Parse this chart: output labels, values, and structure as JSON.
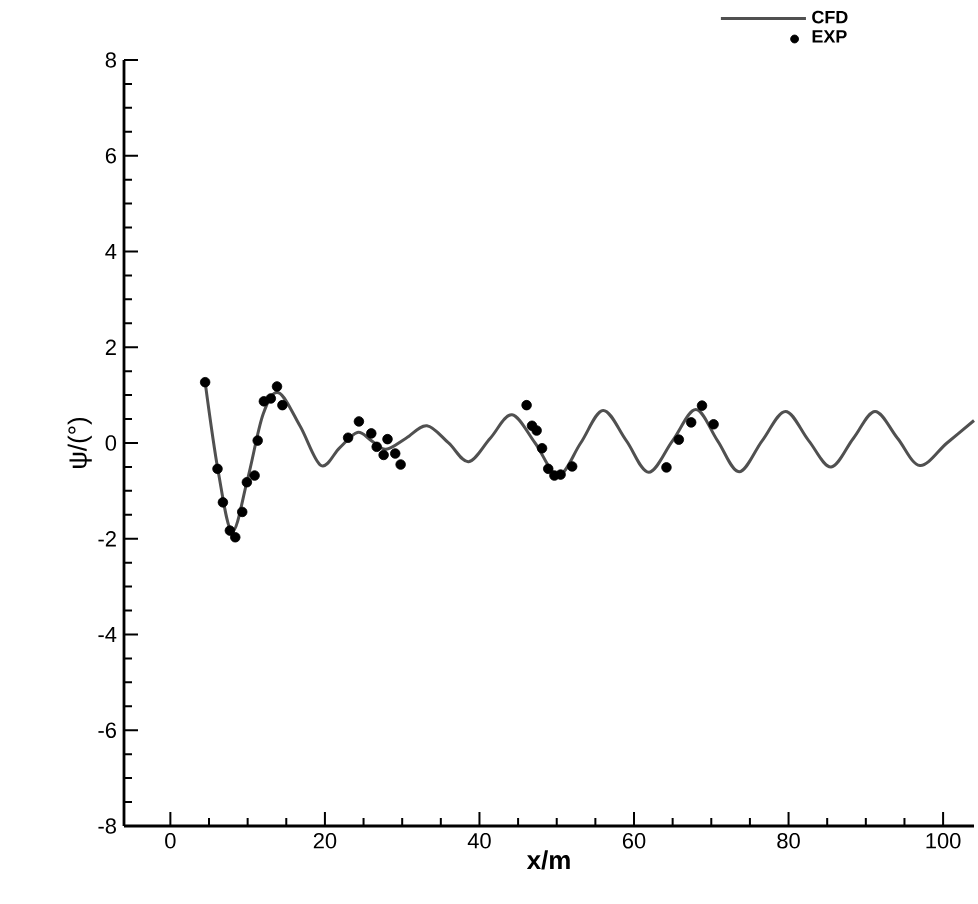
{
  "chart_data": {
    "type": "line",
    "xlabel": "x/m",
    "ylabel": "ψ/(°)",
    "xlim": [
      -6,
      104
    ],
    "ylim": [
      -8,
      8
    ],
    "xticks": [
      0,
      20,
      40,
      60,
      80,
      100
    ],
    "yticks": [
      -8,
      -6,
      -4,
      -2,
      0,
      2,
      4,
      6,
      8
    ],
    "legend": "top right",
    "series": [
      {
        "name": "CFD",
        "type": "line",
        "color": "#505050",
        "marker": "none",
        "x": [
          4.5,
          6.2,
          8.0,
          10.0,
          12.0,
          14.0,
          16.8,
          19.5,
          21.9,
          24.2,
          26.0,
          27.9,
          30.5,
          33.2,
          36.0,
          38.6,
          41.4,
          44.2,
          47.2,
          50.2,
          53.1,
          56.0,
          59.0,
          61.9,
          65.0,
          68.0,
          70.8,
          73.6,
          76.6,
          79.6,
          82.6,
          85.5,
          88.4,
          91.2,
          94.1,
          97.0,
          100.5,
          104.0
        ],
        "values": [
          1.27,
          -0.6,
          -1.85,
          -0.75,
          0.6,
          1.05,
          0.35,
          -0.47,
          -0.1,
          0.22,
          0.05,
          -0.13,
          0.1,
          0.36,
          0.0,
          -0.39,
          0.1,
          0.59,
          0.0,
          -0.68,
          0.0,
          0.68,
          0.05,
          -0.61,
          0.05,
          0.7,
          0.05,
          -0.6,
          0.05,
          0.66,
          0.05,
          -0.5,
          0.1,
          0.66,
          0.1,
          -0.47,
          0.0,
          0.47
        ]
      },
      {
        "name": "EXP",
        "type": "scatter",
        "color": "#000000",
        "marker": "circle",
        "x": [
          4.5,
          6.1,
          6.8,
          7.7,
          8.4,
          9.3,
          9.9,
          10.9,
          11.3,
          12.1,
          13.0,
          13.8,
          14.5,
          23.0,
          24.4,
          26.0,
          26.7,
          27.6,
          28.1,
          29.1,
          29.8,
          46.1,
          46.8,
          47.4,
          48.1,
          48.9,
          49.7,
          50.5,
          52.0,
          64.2,
          65.8,
          67.4,
          68.8,
          70.3
        ],
        "values": [
          1.27,
          -0.54,
          -1.24,
          -1.83,
          -1.97,
          -1.44,
          -0.82,
          -0.68,
          0.05,
          0.87,
          0.93,
          1.18,
          0.79,
          0.11,
          0.45,
          0.2,
          -0.08,
          -0.25,
          0.08,
          -0.22,
          -0.45,
          0.79,
          0.36,
          0.26,
          -0.11,
          -0.54,
          -0.68,
          -0.66,
          -0.49,
          -0.51,
          0.07,
          0.43,
          0.78,
          0.39
        ]
      }
    ]
  }
}
